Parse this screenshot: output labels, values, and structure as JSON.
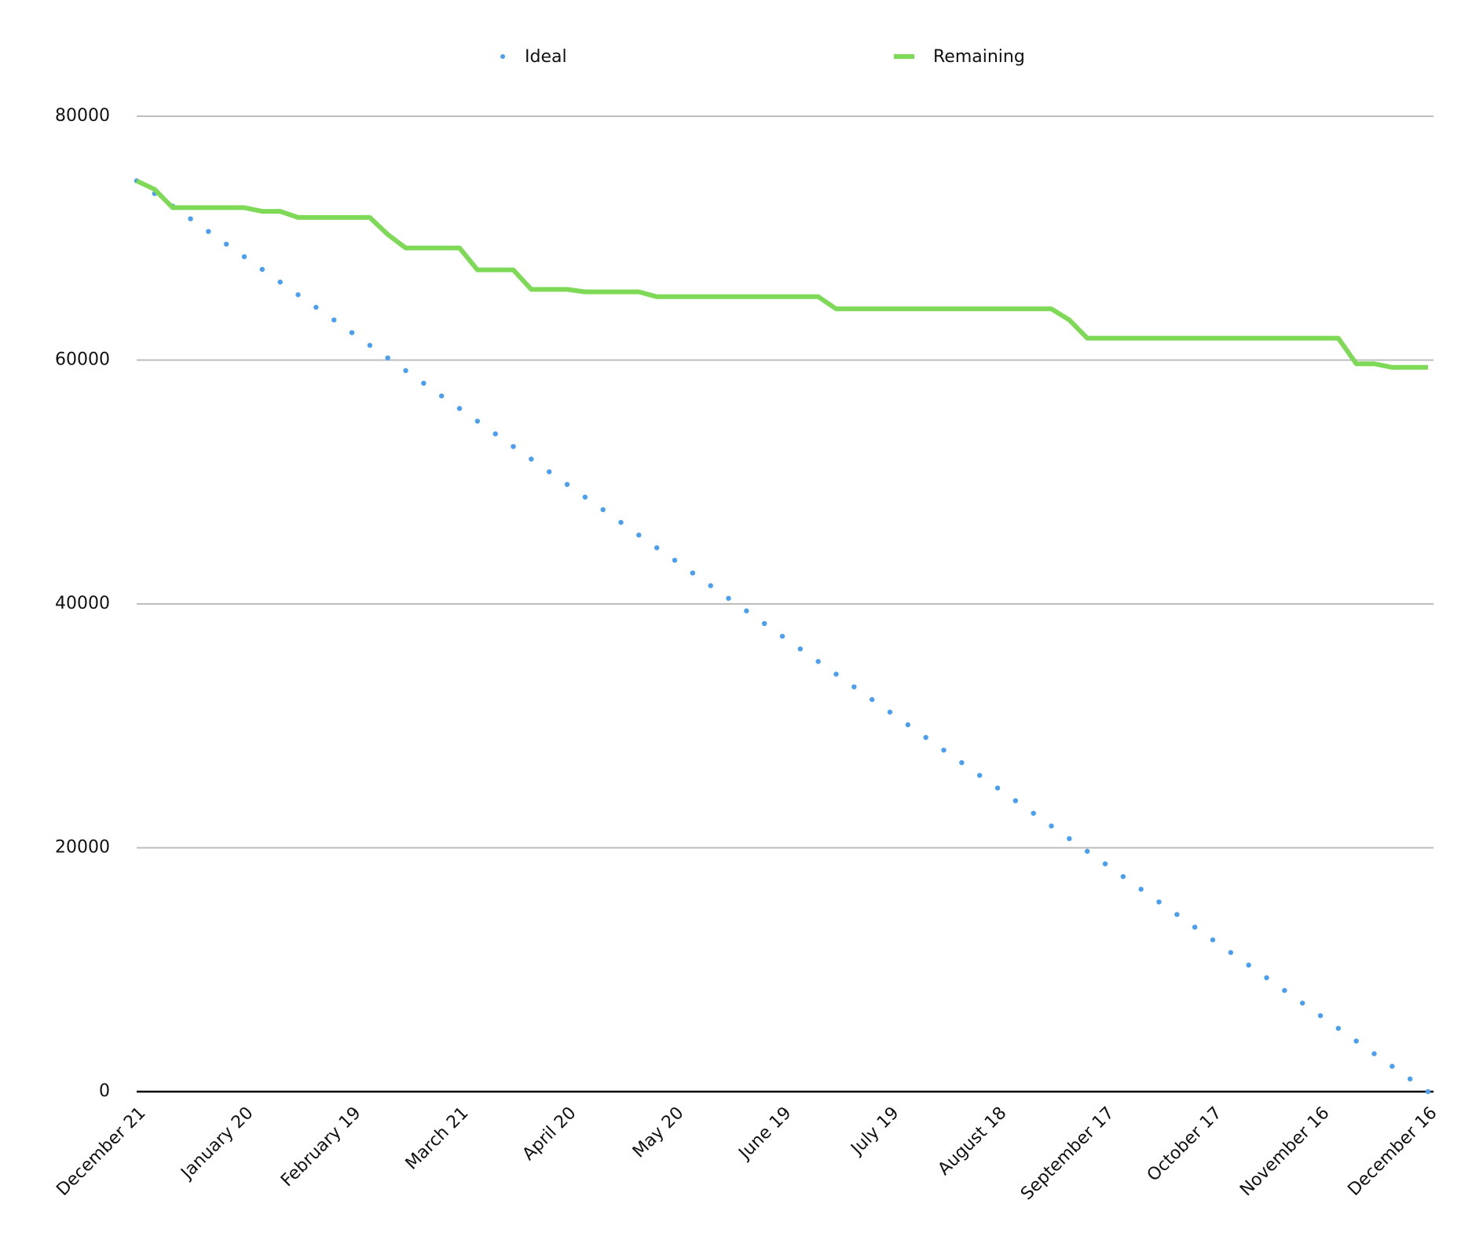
{
  "chart_data": {
    "type": "line",
    "categories": [
      "December 21",
      null,
      null,
      null,
      null,
      null,
      "January 20",
      null,
      null,
      null,
      null,
      null,
      "February 19",
      null,
      null,
      null,
      null,
      null,
      "March 21",
      null,
      null,
      null,
      null,
      null,
      "April 20",
      null,
      null,
      null,
      null,
      null,
      "May 20",
      null,
      null,
      null,
      null,
      null,
      "June 19",
      null,
      null,
      null,
      null,
      null,
      "July 19",
      null,
      null,
      null,
      null,
      null,
      "August 18",
      null,
      null,
      null,
      null,
      null,
      "September 17",
      null,
      null,
      null,
      null,
      null,
      "October 17",
      null,
      null,
      null,
      null,
      null,
      "November 16",
      null,
      null,
      null,
      null,
      null,
      "December 16"
    ],
    "series": [
      {
        "name": "Ideal",
        "color": "#4a9ff0",
        "style": "dots",
        "values": [
          74700,
          73660,
          72630,
          71590,
          70550,
          69510,
          68480,
          67440,
          66400,
          65360,
          64330,
          63290,
          62250,
          61210,
          60180,
          59140,
          58100,
          57060,
          56030,
          54990,
          53950,
          52910,
          51880,
          50840,
          49800,
          48760,
          47730,
          46690,
          45650,
          44610,
          43580,
          42540,
          41500,
          40460,
          39430,
          38390,
          37350,
          36310,
          35280,
          34240,
          33200,
          32160,
          31130,
          30090,
          29050,
          28010,
          26980,
          25940,
          24900,
          23860,
          22830,
          21790,
          20750,
          19710,
          18680,
          17640,
          16600,
          15560,
          14530,
          13490,
          12450,
          11410,
          10380,
          9340,
          8300,
          7260,
          6230,
          5190,
          4150,
          3110,
          2080,
          1040,
          0
        ]
      },
      {
        "name": "Remaining",
        "color": "#7ed957",
        "style": "line",
        "values": [
          74700,
          74000,
          72500,
          72500,
          72500,
          72500,
          72500,
          72200,
          72200,
          71700,
          71700,
          71700,
          71700,
          71700,
          70300,
          69200,
          69200,
          69200,
          69200,
          67400,
          67400,
          67400,
          65800,
          65800,
          65800,
          65600,
          65600,
          65600,
          65600,
          65200,
          65200,
          65200,
          65200,
          65200,
          65200,
          65200,
          65200,
          65200,
          65200,
          64200,
          64200,
          64200,
          64200,
          64200,
          64200,
          64200,
          64200,
          64200,
          64200,
          64200,
          64200,
          64200,
          63300,
          61800,
          61800,
          61800,
          61800,
          61800,
          61800,
          61800,
          61800,
          61800,
          61800,
          61800,
          61800,
          61800,
          61800,
          61800,
          59700,
          59700,
          59400,
          59400,
          59400
        ]
      }
    ],
    "ylim": [
      0,
      80000
    ],
    "yticks": [
      0,
      20000,
      40000,
      60000,
      80000
    ],
    "grid": true,
    "legend": "top"
  }
}
